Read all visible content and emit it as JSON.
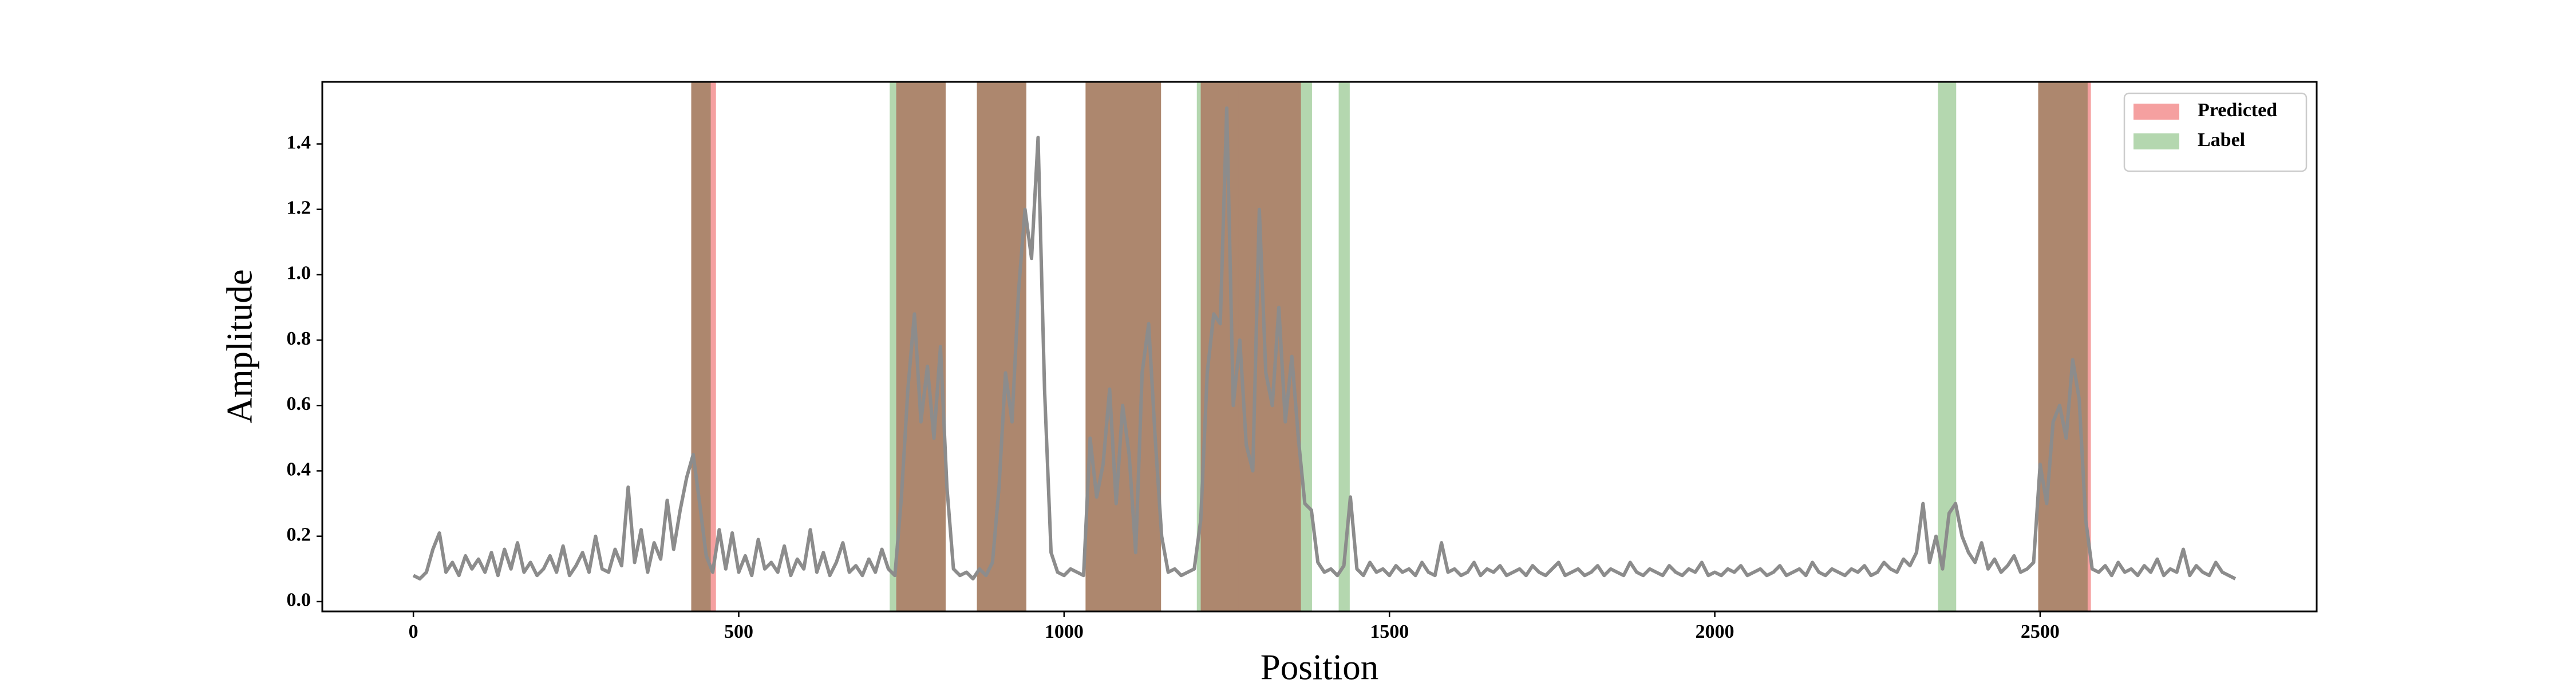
{
  "chart_data": {
    "type": "line",
    "xlabel": "Position",
    "ylabel": "Amplitude",
    "xlim": [
      -140,
      2925
    ],
    "ylim": [
      -0.03,
      1.59
    ],
    "xticks": [
      0,
      500,
      1000,
      1500,
      2000,
      2500
    ],
    "yticks": [
      {
        "value": 0,
        "label": "0.0"
      },
      0.2,
      0.4,
      0.6,
      0.8,
      {
        "value": 1,
        "label": "1.0"
      },
      1.2,
      1.4
    ],
    "legend": "upper right",
    "regions": [
      {
        "name": "Predicted",
        "color": "#f5a0a0",
        "spans": [
          [
            427,
            465
          ],
          [
            742,
            818
          ],
          [
            866,
            942
          ],
          [
            1033,
            1149
          ],
          [
            1210,
            1364
          ],
          [
            2497,
            2578
          ]
        ]
      },
      {
        "name": "Label",
        "color": "#b4d7af",
        "spans": [
          [
            427,
            457
          ],
          [
            732,
            818
          ],
          [
            866,
            942
          ],
          [
            1033,
            1100
          ],
          [
            1100,
            1149
          ],
          [
            1204,
            1268
          ],
          [
            1268,
            1381
          ],
          [
            1422,
            1439
          ],
          [
            2343,
            2371
          ],
          [
            2497,
            2573
          ]
        ]
      }
    ],
    "series": [
      {
        "color": "#8c8c8c",
        "x": [
          0,
          10,
          20,
          30,
          40,
          50,
          60,
          70,
          80,
          90,
          100,
          110,
          120,
          130,
          140,
          150,
          160,
          170,
          180,
          190,
          200,
          210,
          220,
          230,
          240,
          250,
          260,
          270,
          280,
          290,
          300,
          310,
          320,
          330,
          340,
          350,
          360,
          370,
          380,
          390,
          400,
          410,
          420,
          430,
          440,
          450,
          460,
          470,
          480,
          490,
          500,
          510,
          520,
          530,
          540,
          550,
          560,
          570,
          580,
          590,
          600,
          610,
          620,
          630,
          640,
          650,
          660,
          670,
          680,
          690,
          700,
          710,
          720,
          730,
          740,
          750,
          760,
          770,
          780,
          790,
          800,
          810,
          820,
          830,
          840,
          850,
          860,
          870,
          880,
          890,
          900,
          910,
          920,
          930,
          940,
          950,
          960,
          970,
          980,
          990,
          1000,
          1010,
          1020,
          1030,
          1040,
          1050,
          1060,
          1070,
          1080,
          1090,
          1100,
          1110,
          1120,
          1130,
          1140,
          1150,
          1160,
          1170,
          1180,
          1190,
          1200,
          1210,
          1220,
          1230,
          1240,
          1250,
          1260,
          1270,
          1280,
          1290,
          1300,
          1310,
          1320,
          1330,
          1340,
          1350,
          1360,
          1370,
          1380,
          1390,
          1400,
          1410,
          1420,
          1430,
          1440,
          1450,
          1460,
          1470,
          1480,
          1490,
          1500,
          1510,
          1520,
          1530,
          1540,
          1550,
          1560,
          1570,
          1580,
          1590,
          1600,
          1610,
          1620,
          1630,
          1640,
          1650,
          1660,
          1670,
          1680,
          1690,
          1700,
          1710,
          1720,
          1730,
          1740,
          1750,
          1760,
          1770,
          1780,
          1790,
          1800,
          1810,
          1820,
          1830,
          1840,
          1850,
          1860,
          1870,
          1880,
          1890,
          1900,
          1910,
          1920,
          1930,
          1940,
          1950,
          1960,
          1970,
          1980,
          1990,
          2000,
          2010,
          2020,
          2030,
          2040,
          2050,
          2060,
          2070,
          2080,
          2090,
          2100,
          2110,
          2120,
          2130,
          2140,
          2150,
          2160,
          2170,
          2180,
          2190,
          2200,
          2210,
          2220,
          2230,
          2240,
          2250,
          2260,
          2270,
          2280,
          2290,
          2300,
          2310,
          2320,
          2330,
          2340,
          2350,
          2360,
          2370,
          2380,
          2390,
          2400,
          2410,
          2420,
          2430,
          2440,
          2450,
          2460,
          2470,
          2480,
          2490,
          2500,
          2510,
          2520,
          2530,
          2540,
          2550,
          2560,
          2570,
          2580,
          2590,
          2600,
          2610,
          2620,
          2630,
          2640,
          2650,
          2660,
          2670,
          2680,
          2690,
          2700,
          2710,
          2720,
          2730,
          2740,
          2750,
          2760,
          2770,
          2780,
          2790,
          2800
        ],
        "values": [
          0.08,
          0.07,
          0.09,
          0.16,
          0.21,
          0.09,
          0.12,
          0.08,
          0.14,
          0.1,
          0.13,
          0.09,
          0.15,
          0.08,
          0.16,
          0.1,
          0.18,
          0.09,
          0.12,
          0.08,
          0.1,
          0.14,
          0.09,
          0.17,
          0.08,
          0.11,
          0.15,
          0.09,
          0.2,
          0.1,
          0.09,
          0.16,
          0.11,
          0.35,
          0.12,
          0.22,
          0.09,
          0.18,
          0.13,
          0.31,
          0.16,
          0.28,
          0.38,
          0.45,
          0.3,
          0.14,
          0.09,
          0.22,
          0.1,
          0.21,
          0.09,
          0.14,
          0.08,
          0.19,
          0.1,
          0.12,
          0.09,
          0.17,
          0.08,
          0.13,
          0.1,
          0.22,
          0.09,
          0.15,
          0.08,
          0.12,
          0.18,
          0.09,
          0.11,
          0.08,
          0.13,
          0.09,
          0.16,
          0.1,
          0.08,
          0.32,
          0.65,
          0.88,
          0.55,
          0.72,
          0.5,
          0.78,
          0.35,
          0.1,
          0.08,
          0.09,
          0.07,
          0.1,
          0.08,
          0.12,
          0.35,
          0.7,
          0.55,
          0.95,
          1.2,
          1.05,
          1.42,
          0.65,
          0.15,
          0.09,
          0.08,
          0.1,
          0.09,
          0.08,
          0.5,
          0.32,
          0.42,
          0.65,
          0.3,
          0.6,
          0.45,
          0.15,
          0.7,
          0.85,
          0.5,
          0.2,
          0.09,
          0.1,
          0.08,
          0.09,
          0.1,
          0.25,
          0.7,
          0.88,
          0.85,
          1.51,
          0.6,
          0.8,
          0.48,
          0.4,
          1.2,
          0.7,
          0.6,
          0.9,
          0.55,
          0.75,
          0.5,
          0.3,
          0.28,
          0.12,
          0.09,
          0.1,
          0.08,
          0.11,
          0.32,
          0.1,
          0.08,
          0.12,
          0.09,
          0.1,
          0.08,
          0.11,
          0.09,
          0.1,
          0.08,
          0.12,
          0.09,
          0.08,
          0.18,
          0.09,
          0.1,
          0.08,
          0.09,
          0.12,
          0.08,
          0.1,
          0.09,
          0.11,
          0.08,
          0.09,
          0.1,
          0.08,
          0.11,
          0.09,
          0.08,
          0.1,
          0.12,
          0.08,
          0.09,
          0.1,
          0.08,
          0.09,
          0.11,
          0.08,
          0.1,
          0.09,
          0.08,
          0.12,
          0.09,
          0.08,
          0.1,
          0.09,
          0.08,
          0.11,
          0.09,
          0.08,
          0.1,
          0.09,
          0.12,
          0.08,
          0.09,
          0.08,
          0.1,
          0.09,
          0.11,
          0.08,
          0.09,
          0.1,
          0.08,
          0.09,
          0.11,
          0.08,
          0.09,
          0.1,
          0.08,
          0.12,
          0.09,
          0.08,
          0.1,
          0.09,
          0.08,
          0.1,
          0.09,
          0.11,
          0.08,
          0.09,
          0.12,
          0.1,
          0.09,
          0.13,
          0.11,
          0.15,
          0.3,
          0.12,
          0.2,
          0.1,
          0.27,
          0.3,
          0.2,
          0.15,
          0.12,
          0.18,
          0.1,
          0.13,
          0.09,
          0.11,
          0.14,
          0.09,
          0.1,
          0.12,
          0.42,
          0.3,
          0.55,
          0.6,
          0.5,
          0.74,
          0.62,
          0.25,
          0.1,
          0.09,
          0.11,
          0.08,
          0.12,
          0.09,
          0.1,
          0.08,
          0.11,
          0.09,
          0.13,
          0.08,
          0.1,
          0.09,
          0.16,
          0.08,
          0.11,
          0.09,
          0.08,
          0.12,
          0.09,
          0.08,
          0.07
        ]
      }
    ]
  }
}
